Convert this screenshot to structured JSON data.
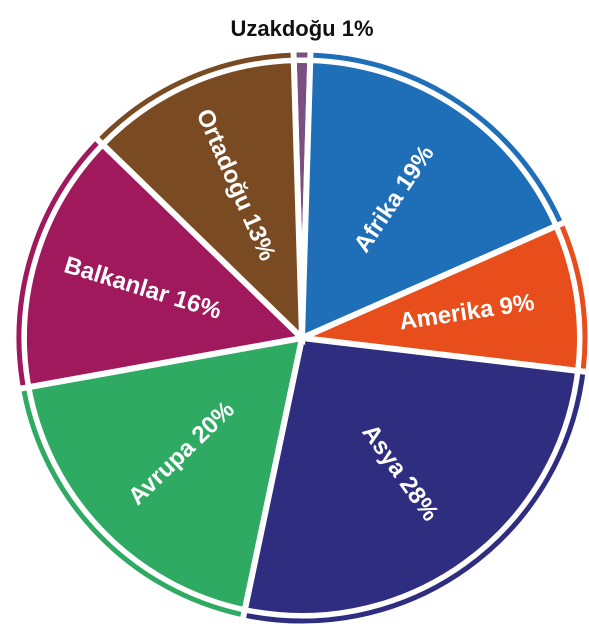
{
  "chart_data": {
    "type": "pie",
    "labels": [
      "Uzakdoğu 1%",
      "Afrika 19%",
      "Amerika 9%",
      "Asya 28%",
      "Avrupa 20%",
      "Balkanlar 16%",
      "Ortadoğu 13%"
    ],
    "values": [
      1,
      19,
      9,
      28,
      20,
      16,
      13
    ],
    "colors": [
      "#7b4f80",
      "#1f6fb8",
      "#e84e1b",
      "#2e2d7f",
      "#2eaa62",
      "#a0195c",
      "#7a4a22"
    ]
  }
}
